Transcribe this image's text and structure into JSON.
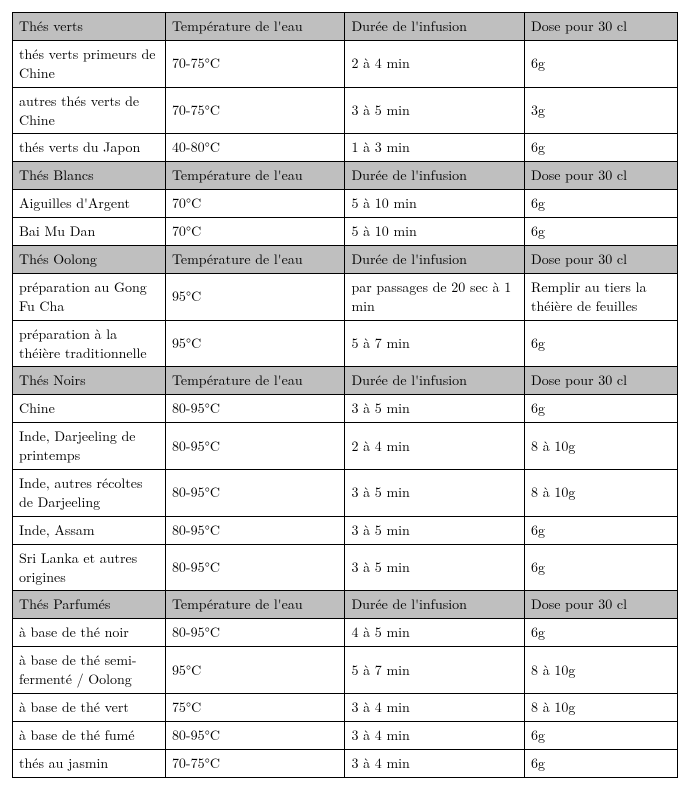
{
  "columns": {
    "temp": "Température de l'eau",
    "duration": "Durée de l'infusion",
    "dose": "Dose pour 30 cl"
  },
  "sections": [
    {
      "title": "Thés verts",
      "rows": [
        {
          "name": "thés verts primeurs de Chine",
          "temp": "70-75°C",
          "duration": "2 à 4 min",
          "dose": "6g"
        },
        {
          "name": "autres thés verts de Chine",
          "temp": "70-75°C",
          "duration": "3 à 5 min",
          "dose": "3g"
        },
        {
          "name": "thés verts du Japon",
          "temp": "40-80°C",
          "duration": "1 à 3 min",
          "dose": "6g"
        }
      ]
    },
    {
      "title": "Thés Blancs",
      "rows": [
        {
          "name": "Aiguilles d'Argent",
          "temp": "70°C",
          "duration": "5 à 10 min",
          "dose": "6g"
        },
        {
          "name": "Bai Mu Dan",
          "temp": "70°C",
          "duration": "5 à 10 min",
          "dose": "6g"
        }
      ]
    },
    {
      "title": "Thés Oolong",
      "rows": [
        {
          "name": "préparation au Gong Fu Cha",
          "temp": "95°C",
          "duration": "par passages de 20 sec à 1 min",
          "dose": "Remplir au tiers la théière de feuilles"
        },
        {
          "name": "préparation à la théière traditionnelle",
          "temp": "95°C",
          "duration": "5 à 7 min",
          "dose": "6g"
        }
      ]
    },
    {
      "title": "Thés Noirs",
      "rows": [
        {
          "name": "Chine",
          "temp": "80-95°C",
          "duration": "3 à 5 min",
          "dose": "6g"
        },
        {
          "name": "Inde, Darjeeling de printemps",
          "temp": "80-95°C",
          "duration": "2 à 4 min",
          "dose": "8 à 10g"
        },
        {
          "name": "Inde, autres récoltes de Darjeeling",
          "temp": "80-95°C",
          "duration": "3 à 5 min",
          "dose": "8 à 10g"
        },
        {
          "name": "Inde, Assam",
          "temp": "80-95°C",
          "duration": "3 à 5 min",
          "dose": "6g"
        },
        {
          "name": "Sri Lanka et autres origines",
          "temp": "80-95°C",
          "duration": "3 à 5 min",
          "dose": "6g"
        }
      ]
    },
    {
      "title": "Thés Parfumés",
      "rows": [
        {
          "name": "à base de thé noir",
          "temp": "80-95°C",
          "duration": "4 à 5 min",
          "dose": "6g"
        },
        {
          "name": "à base de thé semi-fermenté / Oolong",
          "temp": "95°C",
          "duration": "5 à 7 min",
          "dose": "8 à 10g"
        },
        {
          "name": "à base de thé vert",
          "temp": "75°C",
          "duration": "3 à 4 min",
          "dose": "8 à 10g"
        },
        {
          "name": "à base de thé fumé",
          "temp": "80-95°C",
          "duration": "3 à 4 min",
          "dose": "6g"
        },
        {
          "name": "thés au jasmin",
          "temp": "70-75°C",
          "duration": "3 à 4 min",
          "dose": "6g"
        }
      ]
    }
  ],
  "style": {
    "header_bg": "#bfbfbf",
    "border_color": "#000000",
    "font_size_pt": 11,
    "font_family": "Latin Modern Roman",
    "text_color": "#000000",
    "background_color": "#ffffff"
  }
}
